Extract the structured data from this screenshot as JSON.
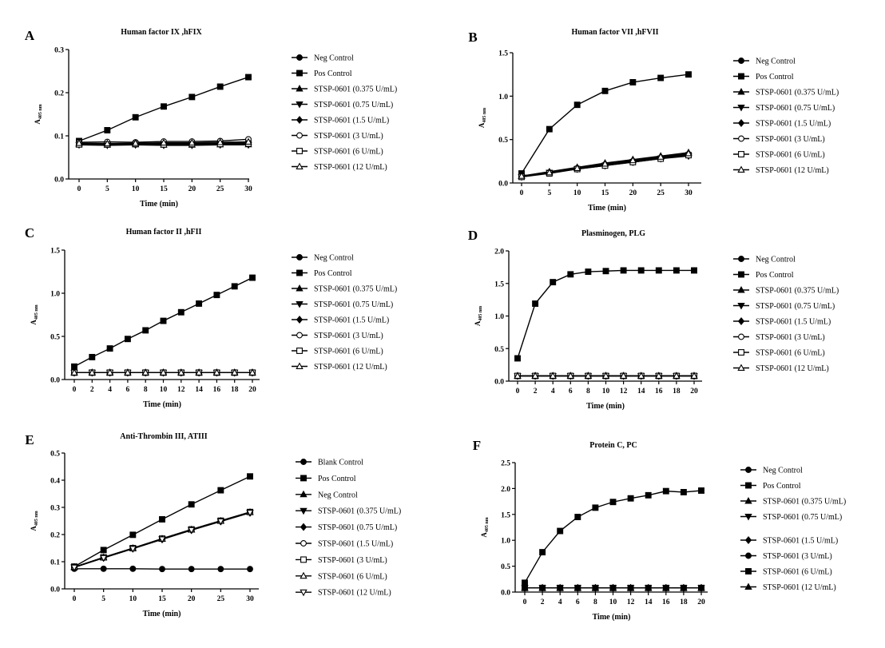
{
  "chart_data": [
    {
      "letter": "A",
      "type": "line",
      "title": "Human factor IX ,hFIX",
      "xlabel": "Time (min)",
      "ylabel": "A",
      "ylabel_sub": "405 nm",
      "x": [
        0,
        5,
        10,
        15,
        20,
        25,
        30
      ],
      "xticks": [
        "0",
        "5",
        "10",
        "15",
        "20",
        "25",
        "30"
      ],
      "ylim": [
        0,
        0.3
      ],
      "yticks": [
        "0.0",
        "0.1",
        "0.2",
        "0.3"
      ],
      "series": [
        {
          "name": "Neg Control",
          "marker": "circle-filled",
          "values": [
            0.082,
            0.08,
            0.08,
            0.08,
            0.08,
            0.08,
            0.081
          ]
        },
        {
          "name": "Pos Control",
          "marker": "square-filled",
          "values": [
            0.088,
            0.113,
            0.143,
            0.168,
            0.19,
            0.214,
            0.236
          ]
        },
        {
          "name": "STSP-0601 (0.375 U/mL)",
          "marker": "triangle-up-filled",
          "values": [
            0.08,
            0.079,
            0.08,
            0.079,
            0.079,
            0.08,
            0.08
          ]
        },
        {
          "name": "STSP-0601 (0.75 U/mL)",
          "marker": "triangle-down-filled",
          "values": [
            0.079,
            0.078,
            0.079,
            0.078,
            0.078,
            0.079,
            0.079
          ]
        },
        {
          "name": "STSP-0601 (1.5 U/mL)",
          "marker": "diamond-filled",
          "values": [
            0.081,
            0.08,
            0.081,
            0.082,
            0.082,
            0.083,
            0.084
          ]
        },
        {
          "name": "STSP-0601 (3 U/mL)",
          "marker": "circle-open",
          "values": [
            0.085,
            0.086,
            0.085,
            0.087,
            0.087,
            0.088,
            0.092
          ]
        },
        {
          "name": "STSP-0601 (6 U/mL)",
          "marker": "square-open",
          "values": [
            0.08,
            0.08,
            0.081,
            0.08,
            0.081,
            0.081,
            0.082
          ]
        },
        {
          "name": "STSP-0601 (12 U/mL)",
          "marker": "triangle-up-open",
          "values": [
            0.083,
            0.082,
            0.083,
            0.084,
            0.084,
            0.085,
            0.086
          ]
        }
      ]
    },
    {
      "letter": "B",
      "type": "line",
      "title": "Human factor VII ,hFVII",
      "xlabel": "Time (min)",
      "ylabel": "A",
      "ylabel_sub": "405 nm",
      "x": [
        0,
        5,
        10,
        15,
        20,
        25,
        30
      ],
      "xticks": [
        "0",
        "5",
        "10",
        "15",
        "20",
        "25",
        "30"
      ],
      "ylim": [
        0,
        1.5
      ],
      "yticks": [
        "0.0",
        "0.5",
        "1.0",
        "1.5"
      ],
      "series": [
        {
          "name": "Neg Control",
          "marker": "circle-filled",
          "values": [
            0.08,
            0.12,
            0.17,
            0.21,
            0.25,
            0.29,
            0.32
          ]
        },
        {
          "name": "Pos Control",
          "marker": "square-filled",
          "values": [
            0.11,
            0.62,
            0.9,
            1.06,
            1.16,
            1.21,
            1.25
          ]
        },
        {
          "name": "STSP-0601 (0.375 U/mL)",
          "marker": "triangle-up-filled",
          "values": [
            0.08,
            0.13,
            0.18,
            0.23,
            0.27,
            0.31,
            0.35
          ]
        },
        {
          "name": "STSP-0601 (0.75 U/mL)",
          "marker": "triangle-down-filled",
          "values": [
            0.07,
            0.12,
            0.16,
            0.2,
            0.24,
            0.28,
            0.31
          ]
        },
        {
          "name": "STSP-0601 (1.5 U/mL)",
          "marker": "diamond-filled",
          "values": [
            0.08,
            0.12,
            0.17,
            0.22,
            0.26,
            0.3,
            0.34
          ]
        },
        {
          "name": "STSP-0601 (3 U/mL)",
          "marker": "circle-open",
          "values": [
            0.08,
            0.12,
            0.16,
            0.21,
            0.25,
            0.29,
            0.33
          ]
        },
        {
          "name": "STSP-0601 (6 U/mL)",
          "marker": "square-open",
          "values": [
            0.07,
            0.11,
            0.16,
            0.2,
            0.24,
            0.28,
            0.32
          ]
        },
        {
          "name": "STSP-0601 (12 U/mL)",
          "marker": "triangle-up-open",
          "values": [
            0.08,
            0.12,
            0.17,
            0.22,
            0.26,
            0.3,
            0.34
          ]
        }
      ]
    },
    {
      "letter": "C",
      "type": "line",
      "title": "Human factor II ,hFII",
      "xlabel": "Time (min)",
      "ylabel": "A",
      "ylabel_sub": "405 nm",
      "x": [
        0,
        2,
        4,
        6,
        8,
        10,
        12,
        14,
        16,
        18,
        20
      ],
      "xticks": [
        "0",
        "2",
        "4",
        "6",
        "8",
        "10",
        "12",
        "14",
        "16",
        "18",
        "20"
      ],
      "ylim": [
        0,
        1.5
      ],
      "yticks": [
        "0.0",
        "0.5",
        "1.0",
        "1.5"
      ],
      "series": [
        {
          "name": "Neg Control",
          "marker": "circle-filled",
          "values": [
            0.08,
            0.08,
            0.08,
            0.08,
            0.08,
            0.08,
            0.08,
            0.08,
            0.08,
            0.08,
            0.08
          ]
        },
        {
          "name": "Pos Control",
          "marker": "square-filled",
          "values": [
            0.15,
            0.26,
            0.36,
            0.47,
            0.57,
            0.68,
            0.78,
            0.88,
            0.98,
            1.08,
            1.18
          ]
        },
        {
          "name": "STSP-0601 (0.375 U/mL)",
          "marker": "triangle-up-filled",
          "values": [
            0.08,
            0.08,
            0.08,
            0.08,
            0.08,
            0.08,
            0.08,
            0.08,
            0.08,
            0.08,
            0.08
          ]
        },
        {
          "name": "STSP-0601 (0.75 U/mL)",
          "marker": "triangle-down-filled",
          "values": [
            0.08,
            0.08,
            0.08,
            0.08,
            0.08,
            0.08,
            0.08,
            0.08,
            0.08,
            0.08,
            0.08
          ]
        },
        {
          "name": "STSP-0601 (1.5 U/mL)",
          "marker": "diamond-filled",
          "values": [
            0.08,
            0.08,
            0.08,
            0.08,
            0.08,
            0.08,
            0.08,
            0.08,
            0.08,
            0.08,
            0.08
          ]
        },
        {
          "name": "STSP-0601 (3 U/mL)",
          "marker": "circle-open",
          "values": [
            0.08,
            0.08,
            0.08,
            0.08,
            0.08,
            0.08,
            0.08,
            0.08,
            0.08,
            0.08,
            0.08
          ]
        },
        {
          "name": "STSP-0601 (6 U/mL)",
          "marker": "square-open",
          "values": [
            0.08,
            0.08,
            0.08,
            0.08,
            0.08,
            0.08,
            0.08,
            0.08,
            0.08,
            0.08,
            0.08
          ]
        },
        {
          "name": "STSP-0601 (12 U/mL)",
          "marker": "triangle-up-open",
          "values": [
            0.08,
            0.08,
            0.08,
            0.08,
            0.08,
            0.08,
            0.08,
            0.08,
            0.08,
            0.08,
            0.08
          ]
        }
      ]
    },
    {
      "letter": "D",
      "type": "line",
      "title": "Plasminogen, PLG",
      "xlabel": "Time (min)",
      "ylabel": "A",
      "ylabel_sub": "405 nm",
      "x": [
        0,
        2,
        4,
        6,
        8,
        10,
        12,
        14,
        16,
        18,
        20
      ],
      "xticks": [
        "0",
        "2",
        "4",
        "6",
        "8",
        "10",
        "12",
        "14",
        "16",
        "18",
        "20"
      ],
      "ylim": [
        0,
        2.0
      ],
      "yticks": [
        "0.0",
        "0.5",
        "1.0",
        "1.5",
        "2.0"
      ],
      "series": [
        {
          "name": "Neg Control",
          "marker": "circle-filled",
          "values": [
            0.08,
            0.08,
            0.08,
            0.08,
            0.08,
            0.08,
            0.08,
            0.08,
            0.08,
            0.08,
            0.08
          ]
        },
        {
          "name": "Pos Control",
          "marker": "square-filled",
          "values": [
            0.35,
            1.19,
            1.52,
            1.64,
            1.68,
            1.69,
            1.7,
            1.7,
            1.7,
            1.7,
            1.7
          ]
        },
        {
          "name": "STSP-0601 (0.375 U/mL)",
          "marker": "triangle-up-filled",
          "values": [
            0.08,
            0.08,
            0.08,
            0.08,
            0.08,
            0.08,
            0.08,
            0.08,
            0.08,
            0.08,
            0.08
          ]
        },
        {
          "name": "STSP-0601 (0.75 U/mL)",
          "marker": "triangle-down-filled",
          "values": [
            0.08,
            0.08,
            0.08,
            0.08,
            0.08,
            0.08,
            0.08,
            0.08,
            0.08,
            0.08,
            0.08
          ]
        },
        {
          "name": "STSP-0601 (1.5 U/mL)",
          "marker": "diamond-filled",
          "values": [
            0.08,
            0.08,
            0.08,
            0.08,
            0.08,
            0.08,
            0.08,
            0.08,
            0.08,
            0.08,
            0.08
          ]
        },
        {
          "name": "STSP-0601 (3 U/mL)",
          "marker": "circle-open",
          "values": [
            0.08,
            0.08,
            0.08,
            0.08,
            0.08,
            0.08,
            0.08,
            0.08,
            0.08,
            0.08,
            0.08
          ]
        },
        {
          "name": "STSP-0601 (6 U/mL)",
          "marker": "square-open",
          "values": [
            0.08,
            0.08,
            0.08,
            0.08,
            0.08,
            0.08,
            0.08,
            0.08,
            0.08,
            0.08,
            0.08
          ]
        },
        {
          "name": "STSP-0601 (12 U/mL)",
          "marker": "triangle-up-open",
          "values": [
            0.08,
            0.08,
            0.08,
            0.08,
            0.08,
            0.08,
            0.08,
            0.08,
            0.08,
            0.08,
            0.08
          ]
        }
      ]
    },
    {
      "letter": "E",
      "type": "line",
      "title": "Anti-Thrombin III, ATIII",
      "xlabel": "Time (min)",
      "ylabel": "A",
      "ylabel_sub": "405 nm",
      "x": [
        0,
        5,
        10,
        15,
        20,
        25,
        30
      ],
      "xticks": [
        "0",
        "5",
        "10",
        "15",
        "20",
        "25",
        "30"
      ],
      "ylim": [
        0,
        0.5
      ],
      "yticks": [
        "0.0",
        "0.1",
        "0.2",
        "0.3",
        "0.4",
        "0.5"
      ],
      "series": [
        {
          "name": "Blank Control",
          "marker": "circle-filled",
          "values": [
            0.074,
            0.074,
            0.074,
            0.073,
            0.073,
            0.073,
            0.073
          ]
        },
        {
          "name": "Pos Control",
          "marker": "square-filled",
          "values": [
            0.082,
            0.143,
            0.199,
            0.256,
            0.311,
            0.363,
            0.414
          ]
        },
        {
          "name": "Neg Control",
          "marker": "triangle-up-filled",
          "values": [
            0.08,
            0.116,
            0.15,
            0.184,
            0.218,
            0.25,
            0.282
          ]
        },
        {
          "name": "STSP-0601 (0.375 U/mL)",
          "marker": "triangle-down-filled",
          "values": [
            0.08,
            0.115,
            0.149,
            0.183,
            0.217,
            0.249,
            0.281
          ]
        },
        {
          "name": "STSP-0601 (0.75 U/mL)",
          "marker": "diamond-filled",
          "values": [
            0.079,
            0.114,
            0.148,
            0.182,
            0.216,
            0.248,
            0.28
          ]
        },
        {
          "name": "STSP-0601 (1.5 U/mL)",
          "marker": "circle-open",
          "values": [
            0.08,
            0.115,
            0.149,
            0.184,
            0.218,
            0.25,
            0.282
          ]
        },
        {
          "name": "STSP-0601 (3 U/mL)",
          "marker": "square-open",
          "values": [
            0.08,
            0.116,
            0.15,
            0.185,
            0.219,
            0.251,
            0.283
          ]
        },
        {
          "name": "STSP-0601 (6 U/mL)",
          "marker": "triangle-up-open",
          "values": [
            0.08,
            0.115,
            0.149,
            0.184,
            0.218,
            0.25,
            0.282
          ]
        },
        {
          "name": "STSP-0601 (12 U/mL)",
          "marker": "triangle-down-open",
          "values": [
            0.079,
            0.114,
            0.148,
            0.183,
            0.217,
            0.249,
            0.281
          ]
        }
      ]
    },
    {
      "letter": "F",
      "type": "line",
      "title": "Protein C, PC",
      "xlabel": "Time (min)",
      "ylabel": "A",
      "ylabel_sub": "405 nm",
      "x": [
        0,
        2,
        4,
        6,
        8,
        10,
        12,
        14,
        16,
        18,
        20
      ],
      "xticks": [
        "0",
        "2",
        "4",
        "6",
        "8",
        "10",
        "12",
        "14",
        "16",
        "18",
        "20"
      ],
      "ylim": [
        0,
        2.5
      ],
      "yticks": [
        "0.0",
        "0.5",
        "1.0",
        "1.5",
        "2.0",
        "2.5"
      ],
      "series": [
        {
          "name": "Neg Control",
          "marker": "circle-filled",
          "values": [
            0.08,
            0.08,
            0.08,
            0.08,
            0.08,
            0.08,
            0.08,
            0.08,
            0.08,
            0.08,
            0.08
          ]
        },
        {
          "name": "Pos Control",
          "marker": "square-filled",
          "values": [
            0.18,
            0.77,
            1.18,
            1.45,
            1.63,
            1.74,
            1.81,
            1.87,
            1.95,
            1.93,
            1.96
          ]
        },
        {
          "name": "STSP-0601 (0.375 U/mL)",
          "marker": "triangle-up-filled",
          "values": [
            0.08,
            0.08,
            0.08,
            0.08,
            0.08,
            0.08,
            0.08,
            0.08,
            0.08,
            0.08,
            0.08
          ]
        },
        {
          "name": "STSP-0601 (0.75 U/mL)",
          "marker": "triangle-down-filled",
          "values": [
            0.08,
            0.08,
            0.08,
            0.08,
            0.08,
            0.08,
            0.08,
            0.08,
            0.08,
            0.08,
            0.08
          ]
        },
        {
          "name": "STSP-0601 (1.5 U/mL)",
          "marker": "diamond-filled",
          "values": [
            0.08,
            0.08,
            0.08,
            0.08,
            0.08,
            0.08,
            0.08,
            0.08,
            0.08,
            0.08,
            0.08
          ]
        },
        {
          "name": "STSP-0601 (3 U/mL)",
          "marker": "circle-filled",
          "values": [
            0.08,
            0.08,
            0.08,
            0.08,
            0.08,
            0.08,
            0.08,
            0.08,
            0.08,
            0.08,
            0.08
          ]
        },
        {
          "name": "STSP-0601 (6 U/mL)",
          "marker": "square-filled",
          "values": [
            0.08,
            0.08,
            0.08,
            0.08,
            0.08,
            0.08,
            0.08,
            0.08,
            0.08,
            0.08,
            0.08
          ]
        },
        {
          "name": "STSP-0601 (12 U/mL)",
          "marker": "triangle-up-filled",
          "values": [
            0.08,
            0.08,
            0.08,
            0.08,
            0.08,
            0.08,
            0.08,
            0.08,
            0.08,
            0.08,
            0.08
          ]
        }
      ]
    }
  ]
}
